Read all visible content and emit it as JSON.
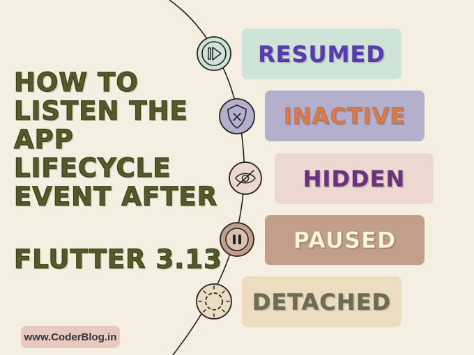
{
  "title_lines": [
    "How to",
    "listen the",
    "App",
    "Lifecycle",
    "Event after"
  ],
  "subtitle": "FLUTTER 3.13",
  "website": "www.CoderBlog.in",
  "events": [
    {
      "label": "RESUMED",
      "icon": "play-icon"
    },
    {
      "label": "INACTIVE",
      "icon": "shield-x-icon"
    },
    {
      "label": "HIDDEN",
      "icon": "eye-off-icon"
    },
    {
      "label": "PAUSED",
      "icon": "pause-icon"
    },
    {
      "label": "DETACHED",
      "icon": "broken-circle-icon"
    }
  ],
  "colors": {
    "background": "#f5efe1",
    "title": "#545a2a",
    "resumed_box": "#cfe4d8",
    "inactive_box": "#b3afcc",
    "hidden_box": "#ecd8cf",
    "paused_box": "#c19f8a",
    "detached_box": "#ecdcc0"
  }
}
